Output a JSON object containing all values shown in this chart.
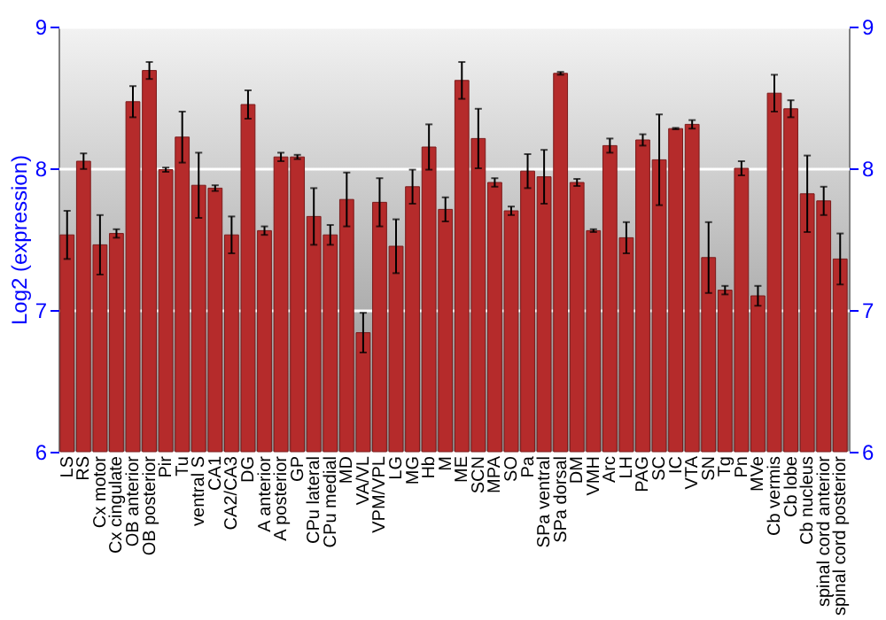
{
  "chart_data": {
    "type": "bar",
    "ylabel": "Log2 (expression)",
    "categories": [
      "LS",
      "RS",
      "Cx motor",
      "Cx cingulate",
      "OB anterior",
      "OB posterior",
      "Pir",
      "Tu",
      "ventral S",
      "CA1",
      "CA2/CA3",
      "DG",
      "A anterior",
      "A posterior",
      "GP",
      "CPu lateral",
      "CPu medial",
      "MD",
      "VA/VL",
      "VPM/VPL",
      "LG",
      "MG",
      "Hb",
      "M",
      "ME",
      "SCN",
      "MPA",
      "SO",
      "Pa",
      "SPa ventral",
      "SPa dorsal",
      "DM",
      "VMH",
      "Arc",
      "LH",
      "PAG",
      "SC",
      "IC",
      "VTA",
      "SN",
      "Tg",
      "Pn",
      "MVe",
      "Cb vermis",
      "Cb lobe",
      "Cb nucleus",
      "spinal cord anterior",
      "spinal cord posterior"
    ],
    "values": [
      7.53,
      8.05,
      7.46,
      7.54,
      8.47,
      8.69,
      7.99,
      8.22,
      7.88,
      7.86,
      7.53,
      8.45,
      7.56,
      8.08,
      8.08,
      7.66,
      7.53,
      7.78,
      6.84,
      7.76,
      7.45,
      7.87,
      8.15,
      7.71,
      8.62,
      8.21,
      7.9,
      7.7,
      7.98,
      7.94,
      8.67,
      7.9,
      7.56,
      8.16,
      7.51,
      8.2,
      8.06,
      8.28,
      8.31,
      7.37,
      7.14,
      8.0,
      7.1,
      8.53,
      8.42,
      7.82,
      7.77,
      7.36
    ],
    "errors": [
      0.17,
      0.055,
      0.21,
      0.03,
      0.11,
      0.06,
      0.015,
      0.18,
      0.23,
      0.02,
      0.13,
      0.1,
      0.03,
      0.03,
      0.015,
      0.2,
      0.07,
      0.19,
      0.14,
      0.17,
      0.19,
      0.12,
      0.16,
      0.085,
      0.13,
      0.21,
      0.03,
      0.03,
      0.12,
      0.19,
      0.01,
      0.025,
      0.01,
      0.05,
      0.11,
      0.04,
      0.32,
      0.005,
      0.03,
      0.25,
      0.03,
      0.05,
      0.07,
      0.13,
      0.06,
      0.27,
      0.1,
      0.18
    ],
    "color": "#b52b2b",
    "ylim": [
      6,
      9
    ],
    "yticks": [
      6,
      7,
      8,
      9
    ],
    "y2lim": [
      6,
      9
    ],
    "y2ticks": [
      6,
      7,
      8,
      9
    ],
    "grid": "y"
  }
}
